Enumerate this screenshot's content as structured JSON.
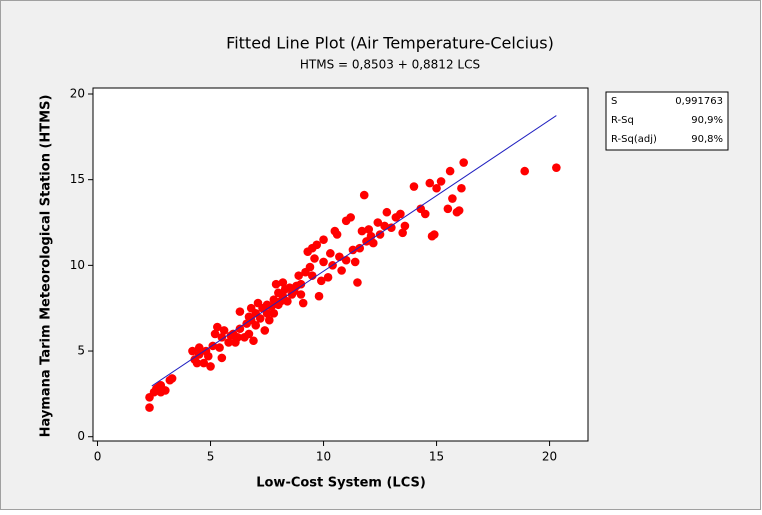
{
  "chart_data": {
    "type": "scatter",
    "title": "Fitted Line Plot (Air Temperature-Celcius)",
    "subtitle": "HTMS =  0,8503 + 0,8812 LCS",
    "x_label": "Low-Cost System (LCS)",
    "y_label": "Haymana Tarim Meteorological Station (HTMS)",
    "xlim": [
      -0.2,
      21.7
    ],
    "ylim": [
      -0.25,
      20.35
    ],
    "xticks": [
      0,
      5,
      10,
      15,
      20
    ],
    "yticks": [
      0,
      5,
      10,
      15,
      20
    ],
    "grid": false,
    "stats": [
      [
        "S",
        "0,991763"
      ],
      [
        "R-Sq",
        "90,9%"
      ],
      [
        "R-Sq(adj)",
        "90,8%"
      ]
    ],
    "series": [
      {
        "color": "#ff0000",
        "x": [
          2.3,
          2.3,
          2.5,
          2.6,
          2.8,
          2.8,
          3.0,
          2.7,
          3.2,
          3.3,
          4.2,
          4.3,
          4.4,
          4.5,
          4.5,
          4.7,
          4.8,
          4.9,
          5.0,
          5.1,
          5.2,
          5.3,
          5.4,
          5.5,
          5.5,
          5.6,
          5.8,
          5.9,
          6.0,
          6.1,
          6.2,
          6.3,
          6.3,
          6.5,
          6.6,
          6.7,
          6.7,
          6.8,
          6.8,
          6.9,
          7.0,
          7.0,
          7.1,
          7.2,
          7.3,
          7.4,
          7.5,
          7.5,
          7.6,
          7.7,
          7.8,
          7.8,
          7.9,
          8.0,
          8.0,
          8.1,
          8.2,
          8.2,
          8.3,
          8.4,
          8.5,
          8.6,
          8.7,
          8.8,
          8.9,
          9.0,
          9.0,
          9.1,
          9.2,
          9.3,
          9.4,
          9.5,
          9.5,
          9.6,
          9.7,
          9.8,
          9.9,
          10.0,
          10.0,
          10.2,
          10.3,
          10.4,
          10.5,
          10.6,
          10.7,
          10.8,
          11.0,
          11.0,
          11.2,
          11.3,
          11.4,
          11.5,
          11.6,
          11.7,
          11.8,
          11.9,
          12.0,
          12.1,
          12.2,
          12.4,
          12.5,
          12.7,
          12.8,
          13.0,
          13.2,
          13.4,
          13.5,
          13.6,
          14.0,
          14.3,
          14.5,
          14.7,
          14.8,
          14.9,
          15.0,
          15.2,
          15.5,
          15.6,
          15.7,
          15.9,
          16.1,
          16.2,
          16.0,
          18.9,
          20.3
        ],
        "values": [
          1.7,
          2.3,
          2.6,
          2.8,
          2.6,
          3.0,
          2.7,
          2.9,
          3.3,
          3.4,
          5.0,
          4.5,
          4.3,
          4.8,
          5.2,
          4.3,
          5.0,
          4.7,
          4.1,
          5.3,
          6.0,
          6.4,
          5.2,
          4.6,
          5.8,
          6.2,
          5.5,
          5.9,
          6.0,
          5.5,
          5.8,
          6.3,
          7.3,
          5.8,
          6.6,
          6.0,
          7.0,
          6.8,
          7.5,
          5.6,
          7.2,
          6.5,
          7.8,
          6.9,
          7.5,
          6.2,
          7.7,
          7.2,
          6.8,
          7.6,
          7.2,
          8.0,
          8.9,
          7.7,
          8.4,
          7.9,
          9.0,
          8.2,
          8.6,
          7.9,
          8.7,
          8.3,
          8.5,
          8.8,
          9.4,
          8.9,
          8.3,
          7.8,
          9.6,
          10.8,
          9.9,
          11.0,
          9.4,
          10.4,
          11.2,
          8.2,
          9.1,
          10.2,
          11.5,
          9.3,
          10.7,
          10.0,
          12.0,
          11.8,
          10.5,
          9.7,
          10.3,
          12.6,
          12.8,
          10.9,
          10.2,
          9.0,
          11.0,
          12.0,
          14.1,
          11.4,
          12.1,
          11.7,
          11.3,
          12.5,
          11.8,
          12.3,
          13.1,
          12.2,
          12.8,
          13.0,
          11.9,
          12.3,
          14.6,
          13.3,
          13.0,
          14.8,
          11.7,
          11.8,
          14.5,
          14.9,
          13.3,
          15.5,
          13.9,
          13.1,
          14.5,
          16.0,
          13.2,
          15.5,
          15.7
        ]
      },
      {
        "color": "#2020c0",
        "x": [
          2.4,
          20.3
        ],
        "values": [
          2.96,
          18.74
        ]
      }
    ]
  }
}
